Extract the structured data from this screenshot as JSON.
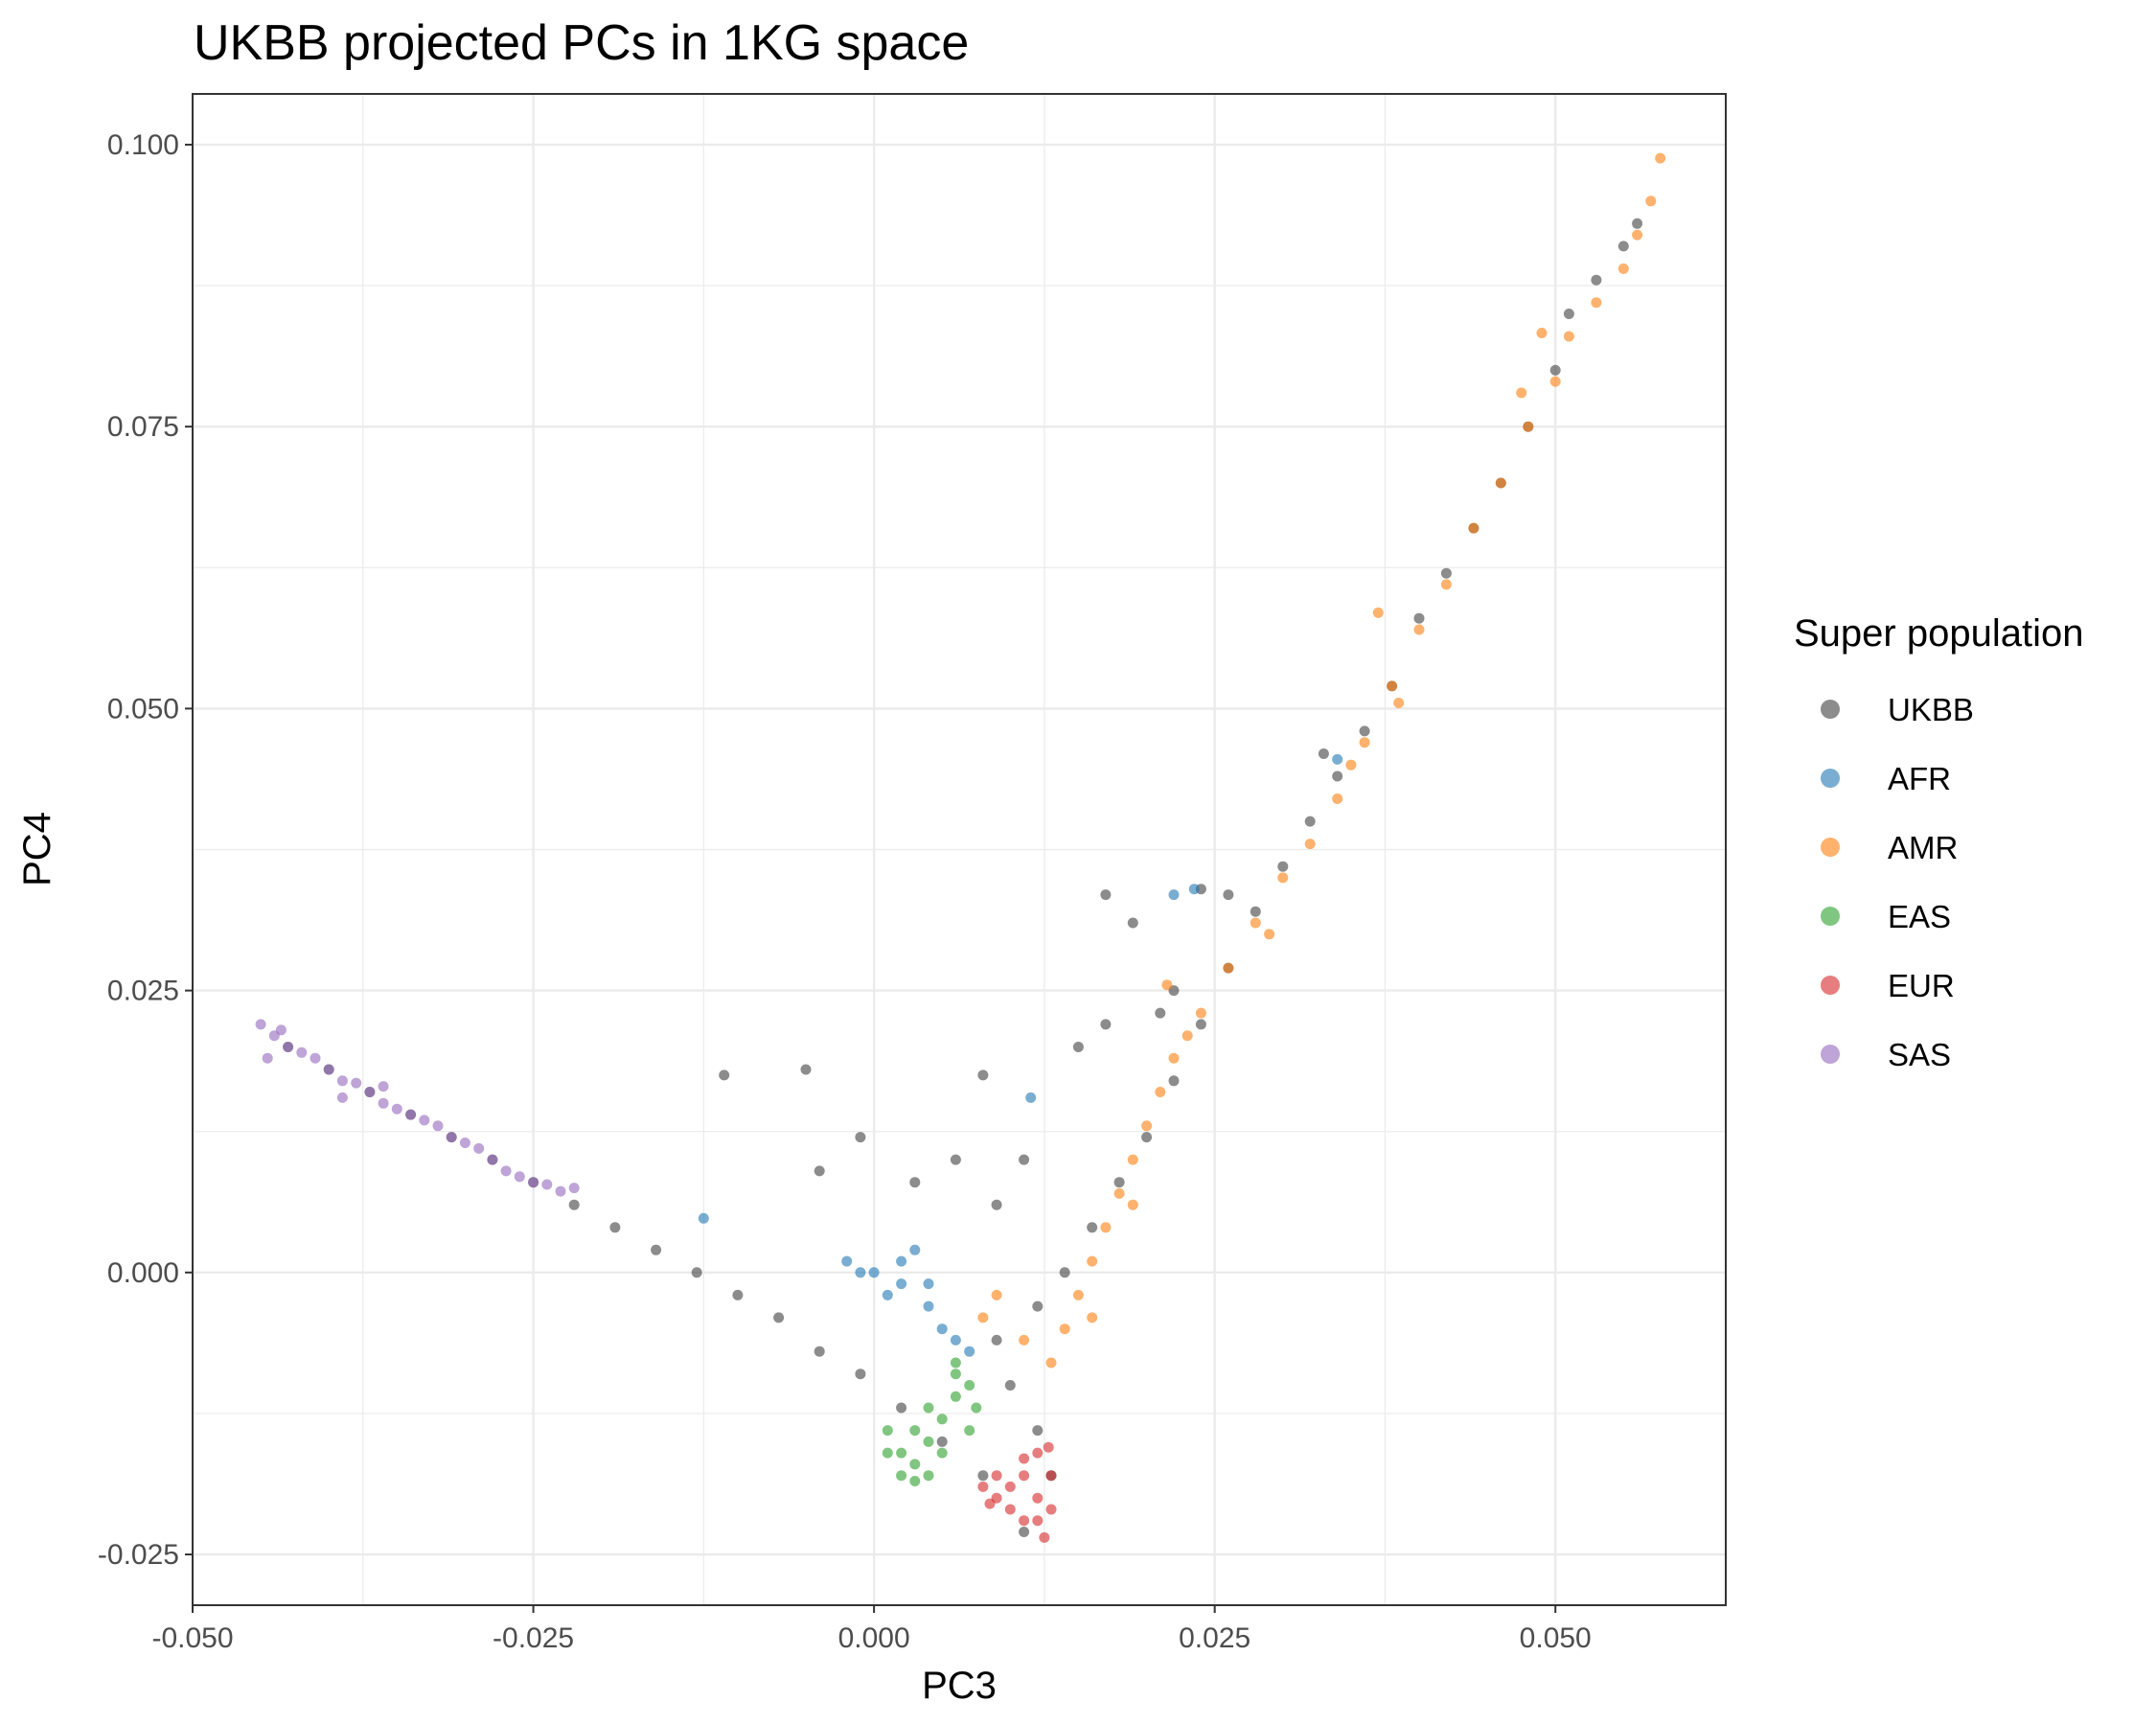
{
  "chart_data": {
    "type": "scatter",
    "title": "UKBB projected PCs in 1KG space",
    "xlabel": "PC3",
    "ylabel": "PC4",
    "xlim": [
      -0.05,
      0.0625
    ],
    "ylim": [
      -0.0295,
      0.1045
    ],
    "x_ticks": [
      -0.05,
      -0.025,
      0.0,
      0.025,
      0.05
    ],
    "x_tick_labels": [
      "-0.050",
      "-0.025",
      "0.000",
      "0.025",
      "0.050"
    ],
    "y_ticks": [
      -0.025,
      0.0,
      0.025,
      0.05,
      0.075,
      0.1
    ],
    "y_tick_labels": [
      "-0.025",
      "0.000",
      "0.025",
      "0.050",
      "0.075",
      "0.100"
    ],
    "grid": true,
    "legend": {
      "title": "Super population",
      "placement": "right"
    },
    "series": [
      {
        "name": "UKBB",
        "color": "#3f3f3f",
        "points": [
          [
            -0.043,
            0.02
          ],
          [
            -0.04,
            0.018
          ],
          [
            -0.037,
            0.016
          ],
          [
            -0.034,
            0.014
          ],
          [
            -0.031,
            0.012
          ],
          [
            -0.028,
            0.01
          ],
          [
            -0.025,
            0.008
          ],
          [
            -0.022,
            0.006
          ],
          [
            -0.019,
            0.004
          ],
          [
            -0.016,
            0.002
          ],
          [
            -0.013,
            0.0
          ],
          [
            -0.01,
            -0.002
          ],
          [
            -0.007,
            -0.004
          ],
          [
            -0.004,
            -0.007
          ],
          [
            -0.001,
            -0.009
          ],
          [
            0.002,
            -0.012
          ],
          [
            0.005,
            -0.015
          ],
          [
            0.008,
            -0.018
          ],
          [
            0.011,
            -0.023
          ],
          [
            0.013,
            -0.018
          ],
          [
            0.012,
            -0.014
          ],
          [
            0.01,
            -0.01
          ],
          [
            0.009,
            -0.006
          ],
          [
            0.012,
            -0.003
          ],
          [
            0.014,
            0.0
          ],
          [
            0.016,
            0.004
          ],
          [
            0.018,
            0.008
          ],
          [
            0.02,
            0.012
          ],
          [
            0.022,
            0.017
          ],
          [
            0.024,
            0.022
          ],
          [
            0.026,
            0.027
          ],
          [
            0.028,
            0.032
          ],
          [
            0.03,
            0.036
          ],
          [
            0.032,
            0.04
          ],
          [
            0.034,
            0.044
          ],
          [
            0.036,
            0.048
          ],
          [
            0.038,
            0.052
          ],
          [
            0.04,
            0.058
          ],
          [
            0.042,
            0.062
          ],
          [
            0.044,
            0.066
          ],
          [
            0.046,
            0.07
          ],
          [
            0.048,
            0.075
          ],
          [
            0.05,
            0.08
          ],
          [
            0.051,
            0.085
          ],
          [
            0.053,
            0.088
          ],
          [
            0.055,
            0.091
          ],
          [
            0.056,
            0.093
          ],
          [
            -0.011,
            0.0175
          ],
          [
            -0.005,
            0.018
          ],
          [
            0.008,
            0.0175
          ],
          [
            0.017,
            0.0335
          ],
          [
            0.024,
            0.034
          ],
          [
            0.026,
            0.0335
          ],
          [
            0.019,
            0.031
          ],
          [
            0.021,
            0.023
          ],
          [
            0.022,
            0.025
          ],
          [
            0.017,
            0.022
          ],
          [
            0.015,
            0.02
          ],
          [
            0.033,
            0.046
          ],
          [
            -0.001,
            0.012
          ],
          [
            0.006,
            0.01
          ],
          [
            0.003,
            0.008
          ],
          [
            -0.004,
            0.009
          ],
          [
            0.011,
            0.01
          ],
          [
            0.009,
            0.006
          ]
        ]
      },
      {
        "name": "AFR",
        "color": "#1f77b4",
        "points": [
          [
            -0.002,
            0.001
          ],
          [
            0.0,
            0.0
          ],
          [
            0.002,
            -0.001
          ],
          [
            0.004,
            -0.003
          ],
          [
            0.005,
            -0.005
          ],
          [
            0.003,
            0.002
          ],
          [
            0.001,
            -0.002
          ],
          [
            -0.001,
            0.0
          ],
          [
            0.006,
            -0.006
          ],
          [
            0.007,
            -0.007
          ],
          [
            0.002,
            0.001
          ],
          [
            0.004,
            -0.001
          ],
          [
            0.0115,
            0.0155
          ],
          [
            0.022,
            0.0335
          ],
          [
            0.0235,
            0.034
          ],
          [
            0.034,
            0.0455
          ],
          [
            -0.0125,
            0.0048
          ]
        ]
      },
      {
        "name": "AMR",
        "color": "#ff7f0e",
        "points": [
          [
            0.013,
            -0.008
          ],
          [
            0.014,
            -0.005
          ],
          [
            0.015,
            -0.002
          ],
          [
            0.016,
            0.001
          ],
          [
            0.017,
            0.004
          ],
          [
            0.018,
            0.007
          ],
          [
            0.019,
            0.01
          ],
          [
            0.02,
            0.013
          ],
          [
            0.021,
            0.016
          ],
          [
            0.022,
            0.019
          ],
          [
            0.024,
            0.023
          ],
          [
            0.026,
            0.027
          ],
          [
            0.028,
            0.031
          ],
          [
            0.03,
            0.035
          ],
          [
            0.032,
            0.038
          ],
          [
            0.034,
            0.042
          ],
          [
            0.036,
            0.047
          ],
          [
            0.038,
            0.052
          ],
          [
            0.04,
            0.057
          ],
          [
            0.042,
            0.061
          ],
          [
            0.044,
            0.066
          ],
          [
            0.046,
            0.07
          ],
          [
            0.048,
            0.075
          ],
          [
            0.05,
            0.079
          ],
          [
            0.051,
            0.083
          ],
          [
            0.053,
            0.086
          ],
          [
            0.055,
            0.089
          ],
          [
            0.056,
            0.092
          ],
          [
            0.057,
            0.095
          ],
          [
            0.0577,
            0.0988
          ],
          [
            0.008,
            -0.004
          ],
          [
            0.009,
            -0.002
          ],
          [
            0.011,
            -0.006
          ],
          [
            0.0215,
            0.0255
          ],
          [
            0.037,
            0.0585
          ],
          [
            0.0385,
            0.0505
          ],
          [
            0.049,
            0.0833
          ],
          [
            0.0475,
            0.078
          ],
          [
            0.035,
            0.045
          ],
          [
            0.029,
            0.03
          ],
          [
            0.023,
            0.021
          ],
          [
            0.019,
            0.006
          ],
          [
            0.016,
            -0.004
          ]
        ]
      },
      {
        "name": "EAS",
        "color": "#2ca02c",
        "points": [
          [
            0.001,
            -0.014
          ],
          [
            0.002,
            -0.016
          ],
          [
            0.003,
            -0.017
          ],
          [
            0.004,
            -0.015
          ],
          [
            0.005,
            -0.013
          ],
          [
            0.006,
            -0.011
          ],
          [
            0.007,
            -0.01
          ],
          [
            0.006,
            -0.009
          ],
          [
            0.004,
            -0.012
          ],
          [
            0.003,
            -0.014
          ],
          [
            0.005,
            -0.016
          ],
          [
            0.002,
            -0.018
          ],
          [
            0.007,
            -0.014
          ],
          [
            0.0075,
            -0.012
          ],
          [
            0.001,
            -0.016
          ],
          [
            0.006,
            -0.008
          ],
          [
            0.004,
            -0.018
          ],
          [
            0.003,
            -0.0185
          ]
        ]
      },
      {
        "name": "EUR",
        "color": "#d62728",
        "points": [
          [
            0.008,
            -0.019
          ],
          [
            0.009,
            -0.02
          ],
          [
            0.01,
            -0.021
          ],
          [
            0.011,
            -0.022
          ],
          [
            0.012,
            -0.02
          ],
          [
            0.013,
            -0.018
          ],
          [
            0.012,
            -0.016
          ],
          [
            0.011,
            -0.018
          ],
          [
            0.01,
            -0.019
          ],
          [
            0.009,
            -0.018
          ],
          [
            0.012,
            -0.022
          ],
          [
            0.013,
            -0.021
          ],
          [
            0.011,
            -0.0165
          ],
          [
            0.0125,
            -0.0235
          ],
          [
            0.0085,
            -0.0205
          ],
          [
            0.0128,
            -0.0155
          ]
        ]
      },
      {
        "name": "SAS",
        "color": "#9467bd",
        "points": [
          [
            -0.045,
            0.022
          ],
          [
            -0.044,
            0.021
          ],
          [
            -0.043,
            0.02
          ],
          [
            -0.042,
            0.0195
          ],
          [
            -0.041,
            0.019
          ],
          [
            -0.04,
            0.018
          ],
          [
            -0.039,
            0.017
          ],
          [
            -0.038,
            0.0168
          ],
          [
            -0.037,
            0.016
          ],
          [
            -0.036,
            0.015
          ],
          [
            -0.035,
            0.0145
          ],
          [
            -0.034,
            0.014
          ],
          [
            -0.033,
            0.0135
          ],
          [
            -0.032,
            0.013
          ],
          [
            -0.031,
            0.012
          ],
          [
            -0.03,
            0.0115
          ],
          [
            -0.029,
            0.011
          ],
          [
            -0.028,
            0.01
          ],
          [
            -0.027,
            0.009
          ],
          [
            -0.026,
            0.0085
          ],
          [
            -0.025,
            0.008
          ],
          [
            -0.024,
            0.0078
          ],
          [
            -0.023,
            0.0072
          ],
          [
            -0.022,
            0.0075
          ],
          [
            -0.0445,
            0.019
          ],
          [
            -0.0435,
            0.0215
          ],
          [
            -0.039,
            0.0155
          ],
          [
            -0.036,
            0.0165
          ]
        ]
      }
    ]
  }
}
